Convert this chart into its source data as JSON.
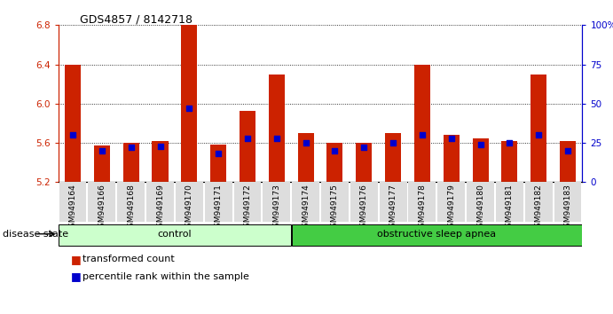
{
  "title": "GDS4857 / 8142718",
  "samples": [
    "GSM949164",
    "GSM949166",
    "GSM949168",
    "GSM949169",
    "GSM949170",
    "GSM949171",
    "GSM949172",
    "GSM949173",
    "GSM949174",
    "GSM949175",
    "GSM949176",
    "GSM949177",
    "GSM949178",
    "GSM949179",
    "GSM949180",
    "GSM949181",
    "GSM949182",
    "GSM949183"
  ],
  "bar_values": [
    6.4,
    5.57,
    5.6,
    5.62,
    6.8,
    5.58,
    5.93,
    6.3,
    5.7,
    5.6,
    5.6,
    5.7,
    6.4,
    5.68,
    5.65,
    5.62,
    6.3,
    5.62
  ],
  "percentile_values": [
    30,
    20,
    22,
    23,
    47,
    18,
    28,
    28,
    25,
    20,
    22,
    25,
    30,
    28,
    24,
    25,
    30,
    20
  ],
  "groups": [
    {
      "label": "control",
      "start": 0,
      "end": 8,
      "color": "#ccffcc"
    },
    {
      "label": "obstructive sleep apnea",
      "start": 8,
      "end": 18,
      "color": "#44cc44"
    }
  ],
  "ymin": 5.2,
  "ymax": 6.8,
  "yticks": [
    5.2,
    5.6,
    6.0,
    6.4,
    6.8
  ],
  "right_yticks": [
    0,
    25,
    50,
    75,
    100
  ],
  "bar_color": "#cc2200",
  "dot_color": "#0000cc",
  "bar_width": 0.55,
  "legend_tc": "transformed count",
  "legend_pr": "percentile rank within the sample",
  "disease_state_label": "disease state",
  "tick_bg_color": "#dddddd"
}
